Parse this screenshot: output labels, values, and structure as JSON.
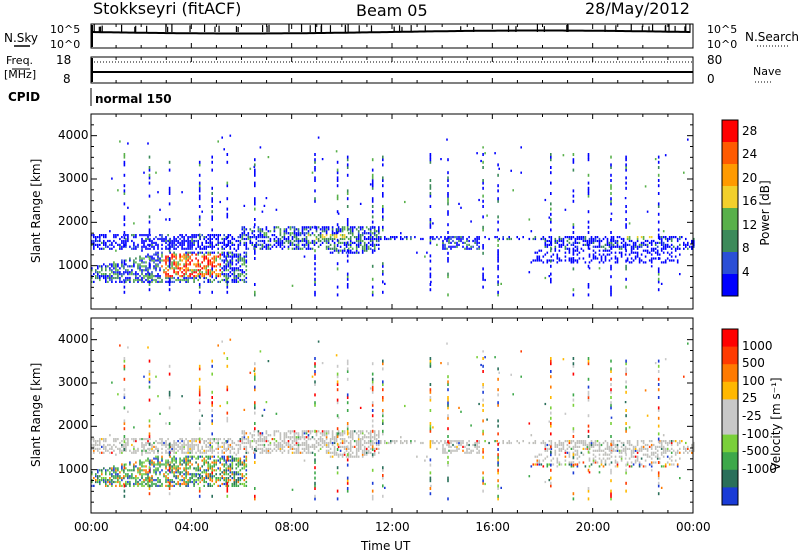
{
  "header": {
    "station": "Stokkseyri (fitACF)",
    "beam": "Beam 05",
    "date": "28/May/2012"
  },
  "aux_panels": {
    "nsky_label": "N.Sky",
    "nsearch_label": "N.Search",
    "nsky_ticks": [
      "10^5",
      "10^0"
    ],
    "nsearch_ticks": [
      "10^5",
      "10^0"
    ],
    "freq_label_line1": "Freq.",
    "freq_label_line2": "[MHz]",
    "freq_ticks": [
      "18",
      "8"
    ],
    "nave_label": "Nave",
    "nave_ticks": [
      "80",
      "0"
    ],
    "cpid_label": "CPID",
    "cpid_value": "normal 150"
  },
  "colors": {
    "power_scale": [
      "#0000ff",
      "#2b4fd6",
      "#3c8a5a",
      "#58b04a",
      "#f2d02b",
      "#ff9a00",
      "#ff5a00",
      "#ff0000"
    ],
    "velocity_scale": [
      "#1a3bd6",
      "#2a6f5a",
      "#3da84a",
      "#7ad03a",
      "#c8c8c8",
      "#c8c8c8",
      "#ffb800",
      "#ff7a00",
      "#ff3a00",
      "#ff0000"
    ],
    "ground_scatter": "#c0c0bc"
  },
  "chart_data": [
    {
      "type": "line",
      "name": "N.Sky / N.Search",
      "x_unit": "UT",
      "yscale": "log",
      "ylim": [
        1,
        100000
      ],
      "x_ticks": [
        "00:00",
        "04:00",
        "08:00",
        "12:00",
        "16:00",
        "20:00",
        "00:00"
      ]
    },
    {
      "type": "line",
      "name": "Freq / Nave",
      "ylim_left": [
        8,
        18
      ],
      "ylim_right": [
        0,
        80
      ],
      "frequency_MHz": 9.8,
      "nave": 75
    },
    {
      "type": "heatmap",
      "panel": "power",
      "title": "",
      "xlabel": "",
      "ylabel": "Slant Range [km]",
      "ylim": [
        0,
        4500
      ],
      "y_ticks": [
        1000,
        2000,
        3000,
        4000
      ],
      "x_ticks": [
        "00:00",
        "04:00",
        "08:00",
        "12:00",
        "16:00",
        "20:00",
        "00:00"
      ],
      "colorbar": {
        "label": "Power [dB]",
        "ticks": [
          4,
          8,
          12,
          16,
          20,
          24,
          28
        ],
        "range": [
          0,
          30
        ]
      },
      "regions": [
        {
          "t_start_h": 0.0,
          "t_end_h": 6.0,
          "range_km": [
            1400,
            1700
          ],
          "power_db": [
            4,
            12
          ]
        },
        {
          "t_start_h": 0.0,
          "t_end_h": 6.2,
          "range_km": [
            600,
            1300
          ],
          "power_db": [
            8,
            30
          ]
        },
        {
          "t_start_h": 6.0,
          "t_end_h": 11.5,
          "range_km": [
            1300,
            1900
          ],
          "power_db": [
            4,
            20
          ]
        },
        {
          "t_start_h": 11.5,
          "t_end_h": 24.0,
          "range_km": [
            1300,
            1700
          ],
          "power_db": [
            4,
            16
          ]
        }
      ]
    },
    {
      "type": "heatmap",
      "panel": "velocity",
      "title": "",
      "xlabel": "Time UT",
      "ylabel": "Slant Range [km]",
      "ylim": [
        0,
        4500
      ],
      "y_ticks": [
        1000,
        2000,
        3000,
        4000
      ],
      "x_ticks": [
        "00:00",
        "04:00",
        "08:00",
        "12:00",
        "16:00",
        "20:00",
        "00:00"
      ],
      "colorbar": {
        "label": "Velocity [m s⁻¹]",
        "ticks": [
          1000,
          500,
          100,
          25,
          -25,
          -100,
          -500,
          -1000
        ]
      },
      "regions": [
        {
          "t_start_h": 0.0,
          "t_end_h": 6.2,
          "range_km": [
            600,
            1300
          ],
          "velocity": "mixed"
        },
        {
          "t_start_h": 0.0,
          "t_end_h": 24.0,
          "range_km": [
            1100,
            1900
          ],
          "velocity": "ground scatter (-25 to 25)"
        }
      ]
    }
  ]
}
